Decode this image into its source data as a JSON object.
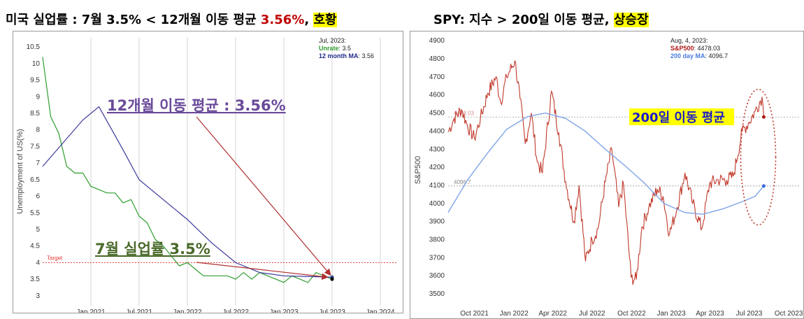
{
  "headlines": {
    "left": {
      "prefix": "미국 실업률 : 7월 3.5% < 12개월 이동 평균 ",
      "value": "3.56%",
      "sep": ", ",
      "verdict": "호황"
    },
    "right": {
      "prefix": "SPY: 지수 > 200일 이동 평균, ",
      "verdict": "상승장"
    }
  },
  "chart_data": [
    {
      "type": "line",
      "ylabel": "Unemployment of US(%)",
      "ylim": [
        2.7,
        10.8
      ],
      "y_ticks": [
        "10.5",
        "10",
        "9.5",
        "9",
        "8.5",
        "8",
        "7.5",
        "7",
        "6.5",
        "6",
        "5.5",
        "5",
        "4.5",
        "4",
        "3.5",
        "3"
      ],
      "x_ticks": [
        "Jan 2021",
        "Jul 2021",
        "Jan 2022",
        "Jul 2022",
        "Jan 2023",
        "Jul 2023",
        "Jan 2024"
      ],
      "info": {
        "date": "Jul, 2023:",
        "unrate_label": "Unrate",
        "unrate_value": "3.5",
        "ma_label": "12 month MA",
        "ma_value": "3.56"
      },
      "target": {
        "label": "Target",
        "value": 4.0,
        "color": "#e53935"
      },
      "annotations": {
        "ma": "12개월 이동 평균 : 3.56%",
        "unrate": "7월 실업률 3.5%"
      },
      "series": [
        {
          "name": "Unrate",
          "color": "#2e9d2e",
          "x": [
            "2020-07",
            "2020-08",
            "2020-09",
            "2020-10",
            "2020-11",
            "2020-12",
            "2021-01",
            "2021-02",
            "2021-03",
            "2021-04",
            "2021-05",
            "2021-06",
            "2021-07",
            "2021-08",
            "2021-09",
            "2021-10",
            "2021-11",
            "2021-12",
            "2022-01",
            "2022-02",
            "2022-03",
            "2022-04",
            "2022-05",
            "2022-06",
            "2022-07",
            "2022-08",
            "2022-09",
            "2022-10",
            "2022-11",
            "2022-12",
            "2023-01",
            "2023-02",
            "2023-03",
            "2023-04",
            "2023-05",
            "2023-06",
            "2023-07"
          ],
          "values": [
            10.2,
            8.4,
            7.9,
            6.9,
            6.7,
            6.7,
            6.3,
            6.2,
            6.1,
            6.1,
            5.8,
            5.9,
            5.4,
            5.2,
            4.7,
            4.5,
            4.2,
            3.9,
            4.0,
            3.8,
            3.6,
            3.6,
            3.6,
            3.6,
            3.5,
            3.7,
            3.5,
            3.7,
            3.6,
            3.5,
            3.4,
            3.6,
            3.5,
            3.4,
            3.7,
            3.6,
            3.5
          ]
        },
        {
          "name": "12 month MA",
          "color": "#3a3a9c",
          "x": [
            "2020-07",
            "2020-12",
            "2021-02",
            "2021-05",
            "2021-07",
            "2021-10",
            "2022-01",
            "2022-04",
            "2022-07",
            "2022-10",
            "2023-01",
            "2023-04",
            "2023-07"
          ],
          "values": [
            6.9,
            8.3,
            8.7,
            7.4,
            6.5,
            5.9,
            5.3,
            4.6,
            4.0,
            3.7,
            3.6,
            3.58,
            3.56
          ]
        }
      ]
    },
    {
      "type": "line",
      "ylabel": "S&P500",
      "ylim": [
        3450,
        4920
      ],
      "y_ticks": [
        "4900",
        "4800",
        "4700",
        "4600",
        "4500",
        "4400",
        "4300",
        "4200",
        "4100",
        "4000",
        "3900",
        "3800",
        "3700",
        "3600",
        "3500"
      ],
      "x_ticks": [
        "Oct 2021",
        "Jan 2022",
        "Apr 2022",
        "Jul 2022",
        "Oct 2022",
        "Jan 2023",
        "Apr 2023",
        "Jul 2023",
        "Oct 2023"
      ],
      "info": {
        "date": "Aug, 4, 2023:",
        "spx_label": "S&P500",
        "spx_value": "4478.03",
        "ma_label": "200 day MA",
        "ma_value": "4096.7"
      },
      "ref_labels": {
        "spx": "4478.03",
        "ma": "4096.7"
      },
      "annotations": {
        "ma": "200일 이동 평균"
      },
      "series": [
        {
          "name": "S&P500",
          "color": "#c0392b",
          "x": [
            "2021-08-01",
            "2021-08-15",
            "2021-09-01",
            "2021-09-15",
            "2021-10-01",
            "2021-10-15",
            "2021-11-01",
            "2021-11-20",
            "2021-12-01",
            "2021-12-15",
            "2022-01-03",
            "2022-01-15",
            "2022-01-27",
            "2022-02-10",
            "2022-02-24",
            "2022-03-08",
            "2022-03-29",
            "2022-04-15",
            "2022-05-01",
            "2022-05-20",
            "2022-06-01",
            "2022-06-16",
            "2022-07-01",
            "2022-07-15",
            "2022-08-01",
            "2022-08-16",
            "2022-09-01",
            "2022-09-12",
            "2022-09-30",
            "2022-10-12",
            "2022-10-25",
            "2022-11-10",
            "2022-11-30",
            "2022-12-13",
            "2022-12-28",
            "2023-01-15",
            "2023-02-02",
            "2023-02-20",
            "2023-03-13",
            "2023-03-31",
            "2023-04-20",
            "2023-05-10",
            "2023-05-25",
            "2023-06-15",
            "2023-07-01",
            "2023-07-15",
            "2023-07-31",
            "2023-08-04"
          ],
          "values": [
            4395,
            4470,
            4520,
            4430,
            4360,
            4470,
            4610,
            4700,
            4560,
            4700,
            4790,
            4580,
            4330,
            4500,
            4230,
            4170,
            4620,
            4390,
            4120,
            3900,
            4100,
            3680,
            3800,
            3860,
            4120,
            4300,
            3980,
            4110,
            3590,
            3580,
            3870,
            3980,
            4080,
            4040,
            3830,
            3980,
            4170,
            4000,
            3860,
            4110,
            4130,
            4130,
            4150,
            4400,
            4450,
            4510,
            4590,
            4478
          ]
        },
        {
          "name": "200 day MA",
          "color": "#7fa4e8",
          "x": [
            "2021-08-01",
            "2021-09-15",
            "2021-11-01",
            "2021-12-15",
            "2022-02-01",
            "2022-03-15",
            "2022-05-01",
            "2022-06-15",
            "2022-08-01",
            "2022-09-15",
            "2022-11-01",
            "2022-12-15",
            "2023-02-01",
            "2023-03-15",
            "2023-05-01",
            "2023-06-15",
            "2023-07-15",
            "2023-08-04"
          ],
          "values": [
            3950,
            4130,
            4280,
            4410,
            4480,
            4500,
            4470,
            4400,
            4300,
            4210,
            4110,
            4000,
            3950,
            3940,
            3970,
            4010,
            4040,
            4096.7
          ]
        }
      ]
    }
  ]
}
